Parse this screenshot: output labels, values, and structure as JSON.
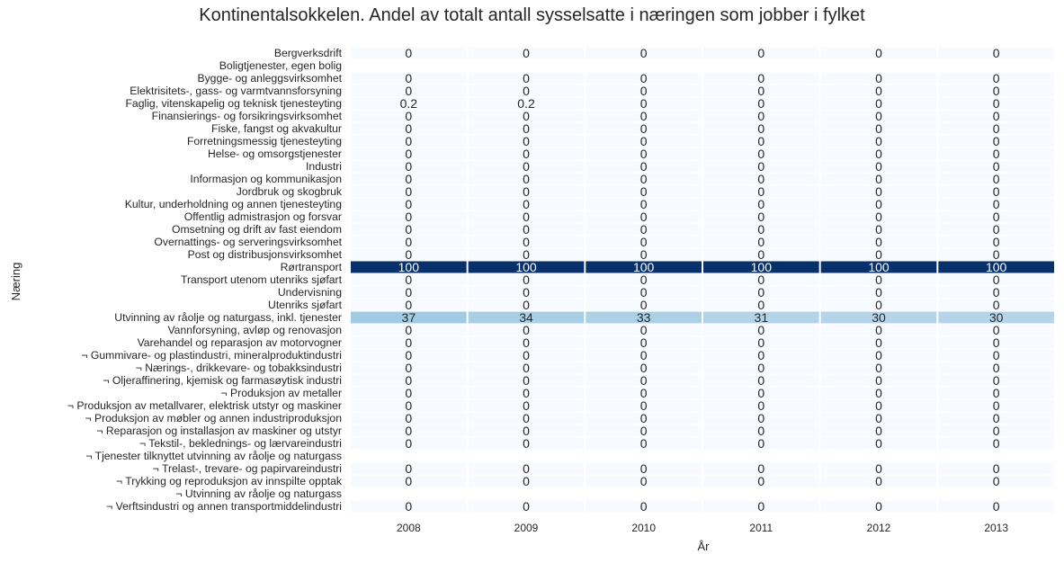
{
  "chart_data": {
    "type": "heatmap",
    "title": "Kontinentalsokkelen. Andel av totalt antall sysselsatte i næringen som jobber i fylket",
    "xlabel": "År",
    "ylabel": "Næring",
    "columns": [
      "2008",
      "2009",
      "2010",
      "2011",
      "2012",
      "2013"
    ],
    "rows": [
      {
        "label": "Bergverksdrift",
        "values": [
          "0",
          "0",
          "0",
          "0",
          "0",
          "0"
        ],
        "shade": [
          0,
          0,
          0,
          0,
          0,
          0
        ]
      },
      {
        "label": "Boligtjenester, egen bolig",
        "values": [
          "",
          "",
          "",
          "",
          "",
          ""
        ],
        "shade": [
          null,
          null,
          null,
          null,
          null,
          null
        ]
      },
      {
        "label": "Bygge- og anleggsvirksomhet",
        "values": [
          "0",
          "0",
          "0",
          "0",
          "0",
          "0"
        ],
        "shade": [
          0,
          0,
          0,
          0,
          0,
          0
        ]
      },
      {
        "label": "Elektrisitets-, gass- og varmtvannsforsyning",
        "values": [
          "0",
          "0",
          "0",
          "0",
          "0",
          "0"
        ],
        "shade": [
          0,
          0,
          0,
          0,
          0,
          0
        ]
      },
      {
        "label": "Faglig, vitenskapelig og teknisk tjenesteyting",
        "values": [
          "0.2",
          "0.2",
          "0",
          "0",
          "0",
          "0"
        ],
        "shade": [
          0.2,
          0.2,
          0,
          0,
          0,
          0
        ]
      },
      {
        "label": "Finansierings- og forsikringsvirksomhet",
        "values": [
          "0",
          "0",
          "0",
          "0",
          "0",
          "0"
        ],
        "shade": [
          0,
          0,
          0,
          0,
          0,
          0
        ]
      },
      {
        "label": "Fiske, fangst og akvakultur",
        "values": [
          "0",
          "0",
          "0",
          "0",
          "0",
          "0"
        ],
        "shade": [
          0,
          0,
          0,
          0,
          0,
          0
        ]
      },
      {
        "label": "Forretningsmessig tjenesteyting",
        "values": [
          "0",
          "0",
          "0",
          "0",
          "0",
          "0"
        ],
        "shade": [
          0,
          0,
          0,
          0,
          0,
          0
        ]
      },
      {
        "label": "Helse- og omsorgstjenester",
        "values": [
          "0",
          "0",
          "0",
          "0",
          "0",
          "0"
        ],
        "shade": [
          0,
          0,
          0,
          0,
          0,
          0
        ]
      },
      {
        "label": "Industri",
        "values": [
          "0",
          "0",
          "0",
          "0",
          "0",
          "0"
        ],
        "shade": [
          0,
          0,
          0,
          0,
          0,
          0
        ]
      },
      {
        "label": "Informasjon og kommunikasjon",
        "values": [
          "0",
          "0",
          "0",
          "0",
          "0",
          "0"
        ],
        "shade": [
          0,
          0,
          0,
          0,
          0,
          0
        ]
      },
      {
        "label": "Jordbruk og skogbruk",
        "values": [
          "0",
          "0",
          "0",
          "0",
          "0",
          "0"
        ],
        "shade": [
          0,
          0,
          0,
          0,
          0,
          0
        ]
      },
      {
        "label": "Kultur, underholdning og annen tjenesteyting",
        "values": [
          "0",
          "0",
          "0",
          "0",
          "0",
          "0"
        ],
        "shade": [
          0,
          0,
          0,
          0,
          0,
          0
        ]
      },
      {
        "label": "Offentlig admistrasjon og forsvar",
        "values": [
          "0",
          "0",
          "0",
          "0",
          "0",
          "0"
        ],
        "shade": [
          0,
          0,
          0,
          0,
          0,
          0
        ]
      },
      {
        "label": "Omsetning og drift av fast eiendom",
        "values": [
          "0",
          "0",
          "0",
          "0",
          "0",
          "0"
        ],
        "shade": [
          0,
          0,
          0,
          0,
          0,
          0
        ]
      },
      {
        "label": "Overnattings- og serveringsvirksomhet",
        "values": [
          "0",
          "0",
          "0",
          "0",
          "0",
          "0"
        ],
        "shade": [
          0,
          0,
          0,
          0,
          0,
          0
        ]
      },
      {
        "label": "Post og distribusjonsvirksomhet",
        "values": [
          "0",
          "0",
          "0",
          "0",
          "0",
          "0"
        ],
        "shade": [
          0,
          0,
          0,
          0,
          0,
          0
        ]
      },
      {
        "label": "Rørtransport",
        "values": [
          "100",
          "100",
          "100",
          "100",
          "100",
          "100"
        ],
        "shade": [
          100,
          100,
          100,
          100,
          100,
          100
        ]
      },
      {
        "label": "Transport utenom utenriks sjøfart",
        "values": [
          "0",
          "0",
          "0",
          "0",
          "0",
          "0"
        ],
        "shade": [
          0,
          0,
          0,
          0,
          0,
          0
        ]
      },
      {
        "label": "Undervisning",
        "values": [
          "0",
          "0",
          "0",
          "0",
          "0",
          "0"
        ],
        "shade": [
          0,
          0,
          0,
          0,
          0,
          0
        ]
      },
      {
        "label": "Utenriks sjøfart",
        "values": [
          "0",
          "0",
          "0",
          "0",
          "0",
          "0"
        ],
        "shade": [
          0,
          0,
          0,
          0,
          0,
          0
        ]
      },
      {
        "label": "Utvinning av råolje og naturgass, inkl. tjenester",
        "values": [
          "37",
          "34",
          "33",
          "31",
          "30",
          "30"
        ],
        "shade": [
          37,
          34,
          33,
          31,
          30,
          30
        ]
      },
      {
        "label": "Vannforsyning, avløp og renovasjon",
        "values": [
          "0",
          "0",
          "0",
          "0",
          "0",
          "0"
        ],
        "shade": [
          0,
          0,
          0,
          0,
          0,
          0
        ]
      },
      {
        "label": "Varehandel og reparasjon av motorvogner",
        "values": [
          "0",
          "0",
          "0",
          "0",
          "0",
          "0"
        ],
        "shade": [
          0,
          0,
          0,
          0,
          0,
          0
        ]
      },
      {
        "label": "¬ Gummivare- og plastindustri, mineralproduktindustri",
        "values": [
          "0",
          "0",
          "0",
          "0",
          "0",
          "0"
        ],
        "shade": [
          0,
          0,
          0,
          0,
          0,
          0
        ]
      },
      {
        "label": "¬ Nærings-, drikkevare- og tobakksindustri",
        "values": [
          "0",
          "0",
          "0",
          "0",
          "0",
          "0"
        ],
        "shade": [
          0,
          0,
          0,
          0,
          0,
          0
        ]
      },
      {
        "label": "¬ Oljeraffinering, kjemisk og farmasøytisk industri",
        "values": [
          "0",
          "0",
          "0",
          "0",
          "0",
          "0"
        ],
        "shade": [
          0,
          0,
          0,
          0,
          0,
          0
        ]
      },
      {
        "label": "¬ Produksjon av metaller",
        "values": [
          "0",
          "0",
          "0",
          "0",
          "0",
          "0"
        ],
        "shade": [
          0,
          0,
          0,
          0,
          0,
          0
        ]
      },
      {
        "label": "¬ Produksjon av metallvarer, elektrisk utstyr og maskiner",
        "values": [
          "0",
          "0",
          "0",
          "0",
          "0",
          "0"
        ],
        "shade": [
          0,
          0,
          0,
          0,
          0,
          0
        ]
      },
      {
        "label": "¬ Produksjon av møbler og annen industriproduksjon",
        "values": [
          "0",
          "0",
          "0",
          "0",
          "0",
          "0"
        ],
        "shade": [
          0,
          0,
          0,
          0,
          0,
          0
        ]
      },
      {
        "label": "¬ Reparasjon og installasjon av maskiner og utstyr",
        "values": [
          "0",
          "0",
          "0",
          "0",
          "0",
          "0"
        ],
        "shade": [
          0,
          0,
          0,
          0,
          0,
          0
        ]
      },
      {
        "label": "¬ Tekstil-, beklednings- og lærvareindustri",
        "values": [
          "0",
          "0",
          "0",
          "0",
          "0",
          "0"
        ],
        "shade": [
          0,
          0,
          0,
          0,
          0,
          0
        ]
      },
      {
        "label": "¬ Tjenester tilknyttet utvinning av råolje og naturgass",
        "values": [
          "",
          "",
          "",
          "",
          "",
          ""
        ],
        "shade": [
          null,
          null,
          null,
          null,
          null,
          null
        ]
      },
      {
        "label": "¬ Trelast-, trevare- og papirvareindustri",
        "values": [
          "0",
          "0",
          "0",
          "0",
          "0",
          "0"
        ],
        "shade": [
          0,
          0,
          0,
          0,
          0,
          0
        ]
      },
      {
        "label": "¬ Trykking og reproduksjon av innspilte opptak",
        "values": [
          "0",
          "0",
          "0",
          "0",
          "0",
          "0"
        ],
        "shade": [
          0,
          0,
          0,
          0,
          0,
          0
        ]
      },
      {
        "label": "¬ Utvinning av råolje og naturgass",
        "values": [
          "",
          "",
          "",
          "",
          "",
          ""
        ],
        "shade": [
          null,
          null,
          null,
          null,
          null,
          null
        ]
      },
      {
        "label": "¬ Verftsindustri og annen transportmiddelindustri",
        "values": [
          "0",
          "0",
          "0",
          "0",
          "0",
          "0"
        ],
        "shade": [
          0,
          0,
          0,
          0,
          0,
          0
        ]
      }
    ],
    "colormap": "Blues",
    "vmin": 0,
    "vmax": 100,
    "grid": false
  }
}
